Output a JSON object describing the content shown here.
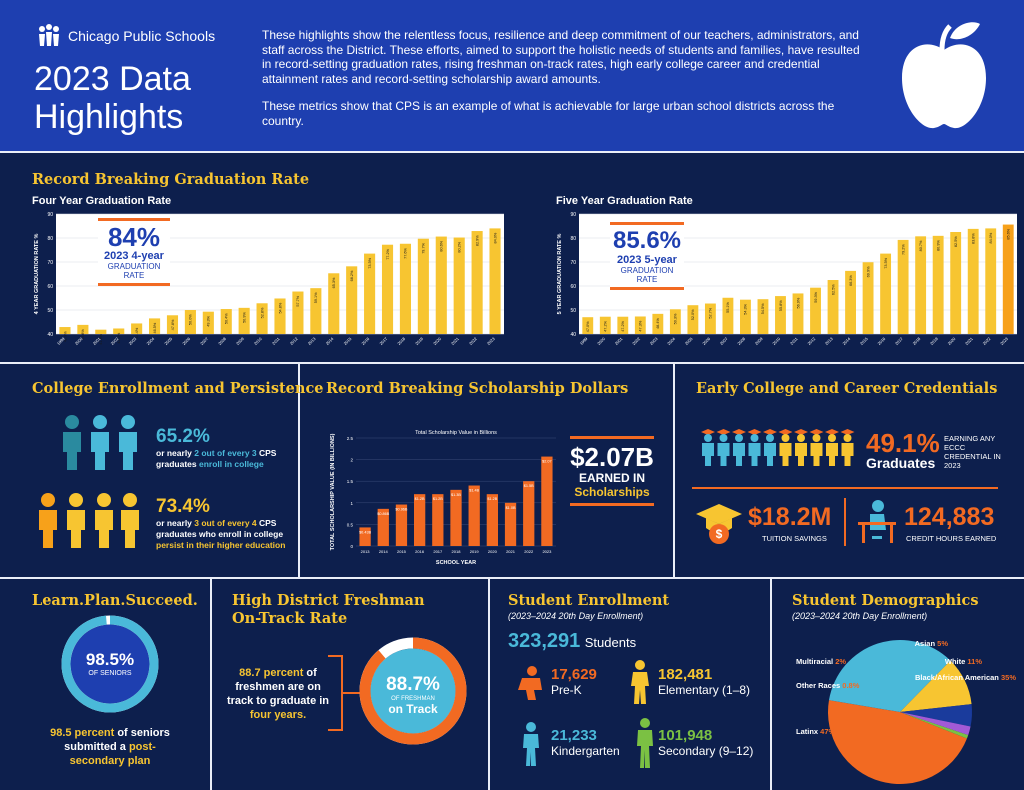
{
  "header": {
    "logo_text": "Chicago Public Schools",
    "title_line1": "2023 Data",
    "title_line2": "Highlights",
    "intro_p1": "These highlights show the relentless focus, resilience and deep commitment of our teachers, administrators, and staff across the District. These efforts, aimed to support the holistic needs of students and families, have resulted in record-setting graduation rates, rising freshman on-track rates, high early college career and credential attainment rates and record-setting scholarship award amounts.",
    "intro_p2": "These metrics show that CPS is an example of what is achievable for large urban school districts across the country."
  },
  "graduation": {
    "section_title": "Record Breaking Graduation Rate",
    "four_year_title": "Four Year Graduation Rate",
    "five_year_title": "Five Year Graduation Rate",
    "four_callout_big": "84%",
    "four_callout_mid": "2023 4-year",
    "four_callout_small": "GRADUATION RATE",
    "five_callout_big": "85.6%",
    "five_callout_mid": "2023 5-year",
    "five_callout_small": "GRADUATION RATE"
  },
  "college": {
    "section_title": "College Enrollment and Persistence",
    "stat1": "65.2%",
    "stat1_pre": "or nearly ",
    "stat1_hl": "2 out of every 3",
    "stat1_mid": " CPS graduates ",
    "stat1_hl2": "enroll in college",
    "stat2": "73.4%",
    "stat2_pre": "or nearly ",
    "stat2_hl": "3 out of every 4",
    "stat2_mid": " CPS graduates who enroll in college ",
    "stat2_hl2": "persist in their higher education"
  },
  "scholarship": {
    "section_title": "Record Breaking Scholarship Dollars",
    "callout_big": "$2.07B",
    "callout_mid": "EARNED IN",
    "callout_small": "Scholarships"
  },
  "eccc": {
    "section_title": "Early College and Career Credentials",
    "pct": "49.1%",
    "pct_label": "Graduates",
    "pct_note": "EARNING ANY ECCC CREDENTIAL IN 2023",
    "savings": "$18.2M",
    "savings_label": "TUITION SAVINGS",
    "hours": "124,883",
    "hours_label": "CREDIT HOURS EARNED"
  },
  "lps": {
    "section_title": "Learn.Plan.Succeed.",
    "ring_value": 98.5,
    "ring_big": "98.5%",
    "ring_small": "OF SENIORS",
    "text1": "98.5 percent",
    "text2": " of seniors submitted a ",
    "text3": "post-secondary plan"
  },
  "ontrack": {
    "section_title_1": "High District Freshman",
    "section_title_2": "On-Track Rate",
    "ring_value": 88.7,
    "ring_big": "88.7%",
    "ring_small": "OF FRESHMAN",
    "ring_label": "on Track",
    "text1": "88.7 percent",
    "text2": " of freshmen are on track to graduate in ",
    "text3": "four years."
  },
  "enrollment": {
    "section_title": "Student Enrollment",
    "subtitle": "(2023–2024 20th Day Enrollment)",
    "total": "323,291",
    "total_label": "Students",
    "items": [
      {
        "value": "17,629",
        "label": "Pre-K"
      },
      {
        "value": "182,481",
        "label": "Elementary (1–8)"
      },
      {
        "value": "21,233",
        "label": "Kindergarten"
      },
      {
        "value": "101,948",
        "label": "Secondary (9–12)"
      }
    ]
  },
  "demographics": {
    "section_title": "Student Demographics",
    "subtitle": "(2023–2024 20th Day Enrollment)"
  },
  "chart_data": [
    {
      "type": "bar",
      "title": "Four Year Graduation Rate",
      "ylabel": "4 YEAR GRADUATION RATE %",
      "ylim": [
        40,
        90
      ],
      "yticks": [
        40,
        50,
        60,
        70,
        80,
        90
      ],
      "categories": [
        "1999",
        "2000",
        "2001",
        "2002",
        "2003",
        "2004",
        "2005",
        "2006",
        "2007",
        "2008",
        "2009",
        "2010",
        "2011",
        "2012",
        "2013",
        "2014",
        "2015",
        "2016",
        "2017",
        "2018",
        "2019",
        "2020",
        "2021",
        "2022",
        "2023"
      ],
      "values": [
        42.9,
        43.8,
        41.8,
        42.3,
        44.4,
        46.5,
        47.8,
        50.0,
        49.3,
        50.4,
        50.9,
        52.8,
        54.8,
        57.7,
        59.1,
        65.3,
        68.2,
        73.5,
        77.2,
        77.6,
        79.7,
        80.6,
        80.2,
        82.9,
        84.0
      ],
      "labels": [
        "42.9%",
        "43.8%",
        "41.8%",
        "42.3%",
        "44.4%",
        "46.5%",
        "47.8%",
        "50.0%",
        "49.3%",
        "50.4%",
        "50.9%",
        "52.8%",
        "54.8%",
        "57.7%",
        "59.1%",
        "65.3%",
        "68.2%",
        "73.5%",
        "77.2%",
        "77.6%",
        "79.7%",
        "80.6%",
        "80.2%",
        "82.9%",
        "84.0%"
      ]
    },
    {
      "type": "bar",
      "title": "Five Year Graduation Rate",
      "ylabel": "5 YEAR GRADUATION RATE %",
      "ylim": [
        40,
        90
      ],
      "yticks": [
        40,
        50,
        60,
        70,
        80,
        90
      ],
      "categories": [
        "1999",
        "2000",
        "2001",
        "2002",
        "2003",
        "2004",
        "2005",
        "2006",
        "2007",
        "2008",
        "2009",
        "2010",
        "2011",
        "2012",
        "2013",
        "2014",
        "2015",
        "2016",
        "2017",
        "2018",
        "2019",
        "2020",
        "2021",
        "2022",
        "2023"
      ],
      "values": [
        47.0,
        47.2,
        47.2,
        47.3,
        48.4,
        50.3,
        52.0,
        52.7,
        55.1,
        54.3,
        54.5,
        55.8,
        56.9,
        59.3,
        62.5,
        66.3,
        69.9,
        73.5,
        79.2,
        80.7,
        80.9,
        82.5,
        83.8,
        84.0,
        85.6
      ],
      "labels": [
        "47.0%",
        "47.2%",
        "47.2%",
        "47.3%",
        "48.4%",
        "50.3%",
        "52.0%",
        "52.7%",
        "55.1%",
        "54.3%",
        "54.5%",
        "55.8%",
        "56.9%",
        "59.3%",
        "62.5%",
        "66.3%",
        "69.9%",
        "73.5%",
        "79.2%",
        "80.7%",
        "80.9%",
        "82.5%",
        "83.8%",
        "84.0%",
        "85.6%"
      ]
    },
    {
      "type": "bar",
      "title": "Total Scholarship Value in Billions",
      "xlabel": "SCHOOL YEAR",
      "ylabel": "TOTAL SCHOLARSHIP VALUE (IN BILLIONS)",
      "ylim": [
        0,
        2.5
      ],
      "yticks": [
        0,
        0.5,
        1,
        1.5,
        2,
        2.5
      ],
      "categories": [
        "2013",
        "2014",
        "2015",
        "2016",
        "2017",
        "2018",
        "2019",
        "2020",
        "2021",
        "2022",
        "2023"
      ],
      "values": [
        0.43,
        0.86,
        0.96,
        1.2,
        1.2,
        1.3,
        1.4,
        1.2,
        1.0,
        1.5,
        2.07
      ],
      "labels": [
        "$0.43B",
        "$0.86B",
        "$0.96B",
        "$1.2B",
        "$1.2B",
        "$1.3B",
        "$1.4B",
        "$1.2B",
        "$1.0B",
        "$1.5B",
        "$2.07"
      ]
    },
    {
      "type": "pie",
      "title": "Student Demographics",
      "slices": [
        {
          "name": "Latinx",
          "value": 47,
          "label": "47%",
          "color": "#f26a22"
        },
        {
          "name": "Black/African American",
          "value": 35,
          "label": "35%",
          "color": "#4ab9d9"
        },
        {
          "name": "White",
          "value": 11,
          "label": "11%",
          "color": "#f7c531"
        },
        {
          "name": "Asian",
          "value": 5,
          "label": "5%",
          "color": "#1a3b9c"
        },
        {
          "name": "Multiracial",
          "value": 2,
          "label": "2%",
          "color": "#a25ad6"
        },
        {
          "name": "Other Races",
          "value": 0.8,
          "label": "0.8%",
          "color": "#7bc143"
        }
      ]
    }
  ],
  "colors": {
    "yellow": "#f7c531",
    "orange": "#f26a22",
    "blue": "#4ab9d9",
    "green": "#7bc143",
    "navy": "#0d1f4d",
    "header": "#1e3fb0"
  }
}
